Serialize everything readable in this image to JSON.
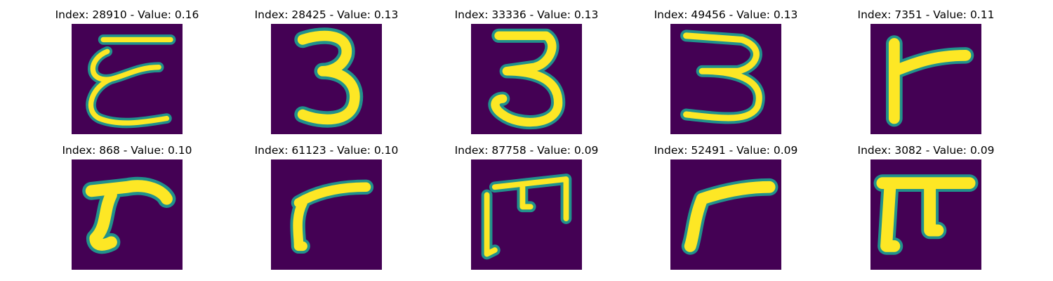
{
  "figure": {
    "colormap": "viridis",
    "background_color": "#440154",
    "stroke_color": "#fde725",
    "edge_colors": [
      "#21918c",
      "#35b779",
      "#5ec962"
    ],
    "panels": [
      {
        "title": "Index: 28910 - Value: 0.16",
        "depicted_glyph": "E"
      },
      {
        "title": "Index: 28425 - Value: 0.13",
        "depicted_glyph": "3"
      },
      {
        "title": "Index: 33336 - Value: 0.13",
        "depicted_glyph": "3"
      },
      {
        "title": "Index: 49456 - Value: 0.13",
        "depicted_glyph": "3"
      },
      {
        "title": "Index: 7351 - Value: 0.11",
        "depicted_glyph": "r"
      },
      {
        "title": "Index: 868 - Value: 0.10",
        "depicted_glyph": "r"
      },
      {
        "title": "Index: 61123 - Value: 0.10",
        "depicted_glyph": "r"
      },
      {
        "title": "Index: 87758 - Value: 0.09",
        "depicted_glyph": "m"
      },
      {
        "title": "Index: 52491 - Value: 0.09",
        "depicted_glyph": "r"
      },
      {
        "title": "Index: 3082 - Value: 0.09",
        "depicted_glyph": "π"
      }
    ]
  }
}
